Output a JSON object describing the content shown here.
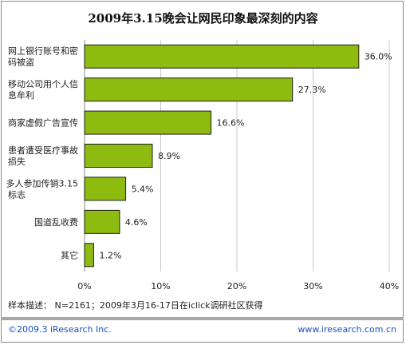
{
  "chart_data": {
    "type": "bar",
    "orientation": "horizontal",
    "title": "2009年3.15晚会让网民印象最深刻的内容",
    "categories": [
      [
        "网上银行账号和密",
        "码被盗"
      ],
      [
        "移动公司用个人信",
        "息牟利"
      ],
      [
        "商家虚假广告宣传"
      ],
      [
        "患者遭受医疗事故",
        "损失"
      ],
      [
        "多人参加传销3.15",
        "标志"
      ],
      [
        "国道乱收费"
      ],
      [
        "其它"
      ]
    ],
    "values": [
      36.0,
      27.3,
      16.6,
      8.9,
      5.4,
      4.6,
      1.2
    ],
    "value_labels": [
      "36.0%",
      "27.3%",
      "16.6%",
      "8.9%",
      "5.4%",
      "4.6%",
      "1.2%"
    ],
    "xlim": [
      0,
      40
    ],
    "xticks": [
      0,
      10,
      20,
      30,
      40
    ],
    "xtick_labels": [
      "0%",
      "10%",
      "20%",
      "30%",
      "40%"
    ],
    "grid": true,
    "bar_color": "#8dbb0f"
  },
  "footer": {
    "sample_note": "样本描述： N=2161；2009年3月16-17日在iclick调研社区获得",
    "copyright": "©2009.3 iResearch Inc.",
    "website": "www.iresearch.com.cn"
  }
}
